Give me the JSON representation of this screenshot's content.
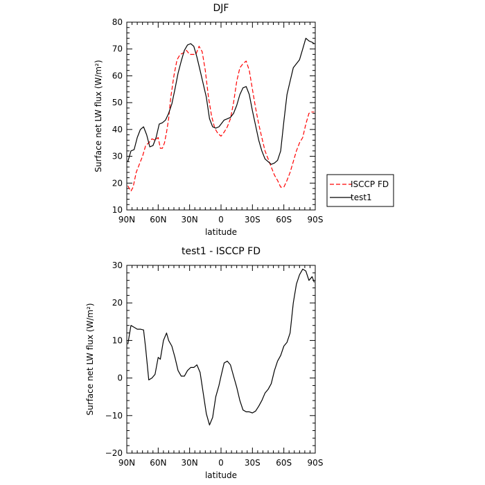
{
  "chart_data": [
    {
      "type": "line",
      "title": "DJF",
      "xlabel": "latitude",
      "ylabel": "Surface net LW flux (W/m²)",
      "xlim": [
        90,
        -90
      ],
      "ylim": [
        10,
        80
      ],
      "xticks": [
        90,
        60,
        30,
        0,
        -30,
        -60,
        -90
      ],
      "xtick_labels": [
        "90N",
        "60N",
        "30N",
        "0",
        "30S",
        "60S",
        "90S"
      ],
      "yticks": [
        10,
        20,
        30,
        40,
        50,
        60,
        70,
        80
      ],
      "ytick_labels": [
        "10",
        "20",
        "30",
        "40",
        "50",
        "60",
        "70",
        "80"
      ],
      "grid": false,
      "legend": "right",
      "series": [
        {
          "name": "ISCCP FD",
          "color": "#ff0000",
          "dash": "dashed",
          "x": [
            89,
            86,
            84,
            81,
            78,
            75,
            72,
            69,
            66,
            63,
            60,
            58,
            56,
            54,
            52,
            50,
            48,
            45,
            42,
            39,
            36,
            33,
            30,
            27,
            24,
            21,
            18,
            15,
            12,
            9,
            6,
            3,
            0,
            -3,
            -6,
            -9,
            -12,
            -15,
            -18,
            -21,
            -24,
            -27,
            -30,
            -33,
            -36,
            -39,
            -42,
            -45,
            -48,
            -51,
            -54,
            -57,
            -60,
            -63,
            -66,
            -69,
            -72,
            -75,
            -78,
            -81,
            -84,
            -86,
            -89
          ],
          "y": [
            19,
            17,
            18.5,
            24,
            27,
            30,
            34,
            35,
            36.5,
            36,
            37,
            33,
            33,
            35,
            39,
            44,
            52,
            60,
            66,
            68,
            68.5,
            69.5,
            68,
            68,
            68,
            71,
            69,
            62,
            52,
            45,
            40.5,
            38.5,
            37.5,
            39,
            41,
            44,
            50,
            58,
            63,
            64.5,
            65.5,
            62,
            55,
            48,
            42,
            37,
            32,
            29,
            26,
            23,
            21,
            18.5,
            18.5,
            21,
            24,
            28,
            32,
            35,
            37,
            42,
            46,
            46.5,
            46.5
          ]
        },
        {
          "name": "test1",
          "color": "#000000",
          "dash": "solid",
          "x": [
            89,
            86,
            83,
            80,
            77,
            74,
            71,
            68,
            65,
            62,
            59,
            56,
            53,
            50,
            47,
            44,
            41,
            38,
            35,
            32,
            29,
            26,
            23,
            20,
            17,
            14,
            11,
            8,
            5,
            2,
            0,
            -3,
            -6,
            -9,
            -12,
            -15,
            -18,
            -21,
            -24,
            -27,
            -30,
            -33,
            -36,
            -39,
            -42,
            -45,
            -48,
            -51,
            -54,
            -57,
            -60,
            -63,
            -66,
            -69,
            -72,
            -75,
            -78,
            -81,
            -84,
            -87,
            -89
          ],
          "y": [
            28,
            32,
            32.5,
            37,
            40,
            41,
            38,
            33.5,
            34,
            37,
            42,
            42.5,
            43.5,
            46,
            49.5,
            55,
            61,
            65.5,
            69.5,
            71.5,
            72,
            71,
            67,
            62,
            57,
            52,
            44,
            41,
            40.5,
            41,
            42,
            43.5,
            44,
            44.5,
            46,
            49,
            53,
            55.5,
            56,
            53,
            47,
            41.5,
            36,
            32,
            29,
            28,
            27,
            27.5,
            28.5,
            32,
            43,
            53,
            58,
            63,
            64.5,
            66,
            70,
            74,
            73,
            72.5,
            72
          ]
        }
      ]
    },
    {
      "type": "line",
      "title": "test1 - ISCCP FD",
      "xlabel": "latitude",
      "ylabel": "Surface net LW flux (W/m²)",
      "xlim": [
        90,
        -90
      ],
      "ylim": [
        -20,
        30
      ],
      "xticks": [
        90,
        60,
        30,
        0,
        -30,
        -60,
        -90
      ],
      "xtick_labels": [
        "90N",
        "60N",
        "30N",
        "0",
        "30S",
        "60S",
        "90S"
      ],
      "yticks": [
        -20,
        -10,
        0,
        10,
        20,
        30
      ],
      "ytick_labels": [
        "−20",
        "−10",
        "0",
        "10",
        "20",
        "30"
      ],
      "grid": false,
      "series": [
        {
          "color": "#000000",
          "dash": "solid",
          "x": [
            89,
            86,
            83,
            80,
            77,
            74,
            72,
            69,
            66,
            63,
            60,
            58,
            55,
            52,
            50,
            47,
            44,
            41,
            38,
            35,
            32,
            29,
            26,
            23,
            20,
            17,
            14,
            11,
            8,
            5,
            2,
            0,
            -3,
            -6,
            -9,
            -12,
            -15,
            -18,
            -21,
            -24,
            -27,
            -30,
            -33,
            -36,
            -39,
            -42,
            -45,
            -48,
            -51,
            -54,
            -57,
            -60,
            -63,
            -66,
            -69,
            -72,
            -75,
            -78,
            -81,
            -84,
            -87,
            -89
          ],
          "y": [
            9,
            14,
            13.5,
            13,
            13,
            12.8,
            8,
            -0.5,
            0,
            1,
            5.5,
            5,
            10,
            12,
            10,
            8.5,
            5.5,
            2,
            0.5,
            0.5,
            2,
            2.8,
            2.8,
            3.5,
            1.5,
            -4,
            -9.5,
            -12.5,
            -10.5,
            -5,
            -2,
            0.5,
            4,
            4.5,
            3.5,
            0.5,
            -2.5,
            -6,
            -8.5,
            -9,
            -9,
            -9.3,
            -8.8,
            -7.5,
            -6,
            -4,
            -3,
            -1.5,
            2,
            4.5,
            6,
            8.5,
            9.5,
            12,
            20,
            25,
            27.5,
            29,
            28.5,
            26,
            27,
            25.5
          ]
        }
      ]
    }
  ]
}
